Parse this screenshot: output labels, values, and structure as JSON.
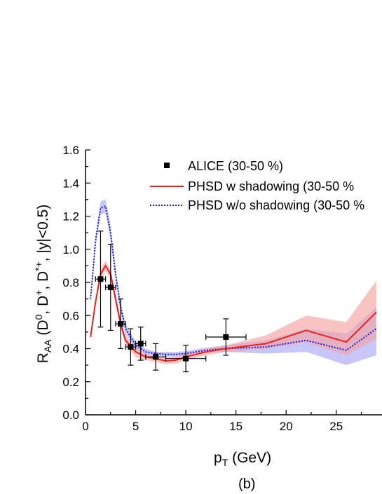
{
  "chart_data": {
    "type": "line",
    "title": "",
    "xlabel": {
      "main": "p",
      "sub": "T",
      "rest": " (GeV)"
    },
    "ylabel": {
      "main": "R",
      "sub": "AA",
      "rest1": " (D",
      "sup1": "0",
      "rest2": ", D",
      "sup2": "+",
      "rest3": ", D",
      "sup3": "*+",
      "rest4": ", |y|<0.5)"
    },
    "panel_label": "(b)",
    "xlim": [
      0,
      29
    ],
    "ylim": [
      0,
      1.6
    ],
    "x_ticks": [
      "0",
      "5",
      "10",
      "15",
      "20",
      "25"
    ],
    "y_ticks": [
      "0.0",
      "0.2",
      "0.4",
      "0.6",
      "0.8",
      "1.0",
      "1.2",
      "1.4",
      "1.6"
    ],
    "legend_position": "top-right",
    "legend": [
      "ALICE (30-50 %)",
      "PHSD w shadowing (30-50 %",
      "PHSD w/o shadowing (30-50 %"
    ],
    "colors": {
      "data": "#000000",
      "with_shadowing": "#e8231f",
      "with_shadowing_band": "#f5a3a3",
      "without_shadowing": "#1a1adc",
      "without_shadowing_band": "#a8a8f2"
    },
    "data_points": [
      {
        "x": 1.5,
        "y": 0.82,
        "xerr": 0.5,
        "yerr": 0.29
      },
      {
        "x": 2.5,
        "y": 0.77,
        "xerr": 0.5,
        "yerr": 0.26
      },
      {
        "x": 3.5,
        "y": 0.55,
        "xerr": 0.5,
        "yerr": 0.15
      },
      {
        "x": 4.5,
        "y": 0.41,
        "xerr": 0.5,
        "yerr": 0.11
      },
      {
        "x": 5.5,
        "y": 0.43,
        "xerr": 0.5,
        "yerr": 0.1
      },
      {
        "x": 7.0,
        "y": 0.35,
        "xerr": 1.0,
        "yerr": 0.08
      },
      {
        "x": 10.0,
        "y": 0.34,
        "xerr": 2.0,
        "yerr": 0.08
      },
      {
        "x": 14.0,
        "y": 0.47,
        "xerr": 2.0,
        "yerr": 0.11
      }
    ],
    "series": [
      {
        "name": "PHSD w shadowing (30-50 %",
        "x": [
          0.5,
          1.0,
          1.5,
          2.0,
          2.5,
          3.0,
          3.5,
          4.0,
          5.0,
          6.0,
          7.0,
          8.0,
          9.0,
          10.0,
          12.0,
          14.0,
          18.0,
          22.0,
          26.0,
          29.0
        ],
        "y": [
          0.47,
          0.68,
          0.85,
          0.9,
          0.85,
          0.7,
          0.55,
          0.45,
          0.38,
          0.35,
          0.34,
          0.325,
          0.33,
          0.35,
          0.38,
          0.4,
          0.43,
          0.51,
          0.44,
          0.62
        ],
        "upper": [
          0.48,
          0.7,
          0.88,
          0.93,
          0.88,
          0.73,
          0.58,
          0.48,
          0.41,
          0.37,
          0.36,
          0.345,
          0.35,
          0.37,
          0.4,
          0.42,
          0.48,
          0.6,
          0.56,
          0.81
        ],
        "lower": [
          0.46,
          0.66,
          0.82,
          0.87,
          0.82,
          0.67,
          0.52,
          0.42,
          0.35,
          0.33,
          0.32,
          0.305,
          0.31,
          0.33,
          0.36,
          0.38,
          0.4,
          0.44,
          0.36,
          0.46
        ]
      },
      {
        "name": "PHSD w/o shadowing (30-50 %",
        "x": [
          0.5,
          1.0,
          1.5,
          2.0,
          2.5,
          3.0,
          3.5,
          4.0,
          5.0,
          6.0,
          7.0,
          8.0,
          9.0,
          10.0,
          12.0,
          14.0,
          18.0,
          22.0,
          26.0,
          29.0
        ],
        "y": [
          0.7,
          1.05,
          1.25,
          1.26,
          1.1,
          0.85,
          0.65,
          0.52,
          0.42,
          0.38,
          0.37,
          0.365,
          0.365,
          0.37,
          0.39,
          0.4,
          0.41,
          0.45,
          0.39,
          0.52
        ],
        "upper": [
          0.72,
          1.08,
          1.29,
          1.3,
          1.14,
          0.88,
          0.68,
          0.55,
          0.44,
          0.4,
          0.38,
          0.38,
          0.38,
          0.385,
          0.405,
          0.42,
          0.45,
          0.52,
          0.49,
          0.65
        ],
        "lower": [
          0.68,
          1.02,
          1.21,
          1.22,
          1.06,
          0.82,
          0.62,
          0.49,
          0.4,
          0.36,
          0.36,
          0.35,
          0.35,
          0.355,
          0.375,
          0.38,
          0.37,
          0.38,
          0.3,
          0.36
        ]
      }
    ]
  }
}
